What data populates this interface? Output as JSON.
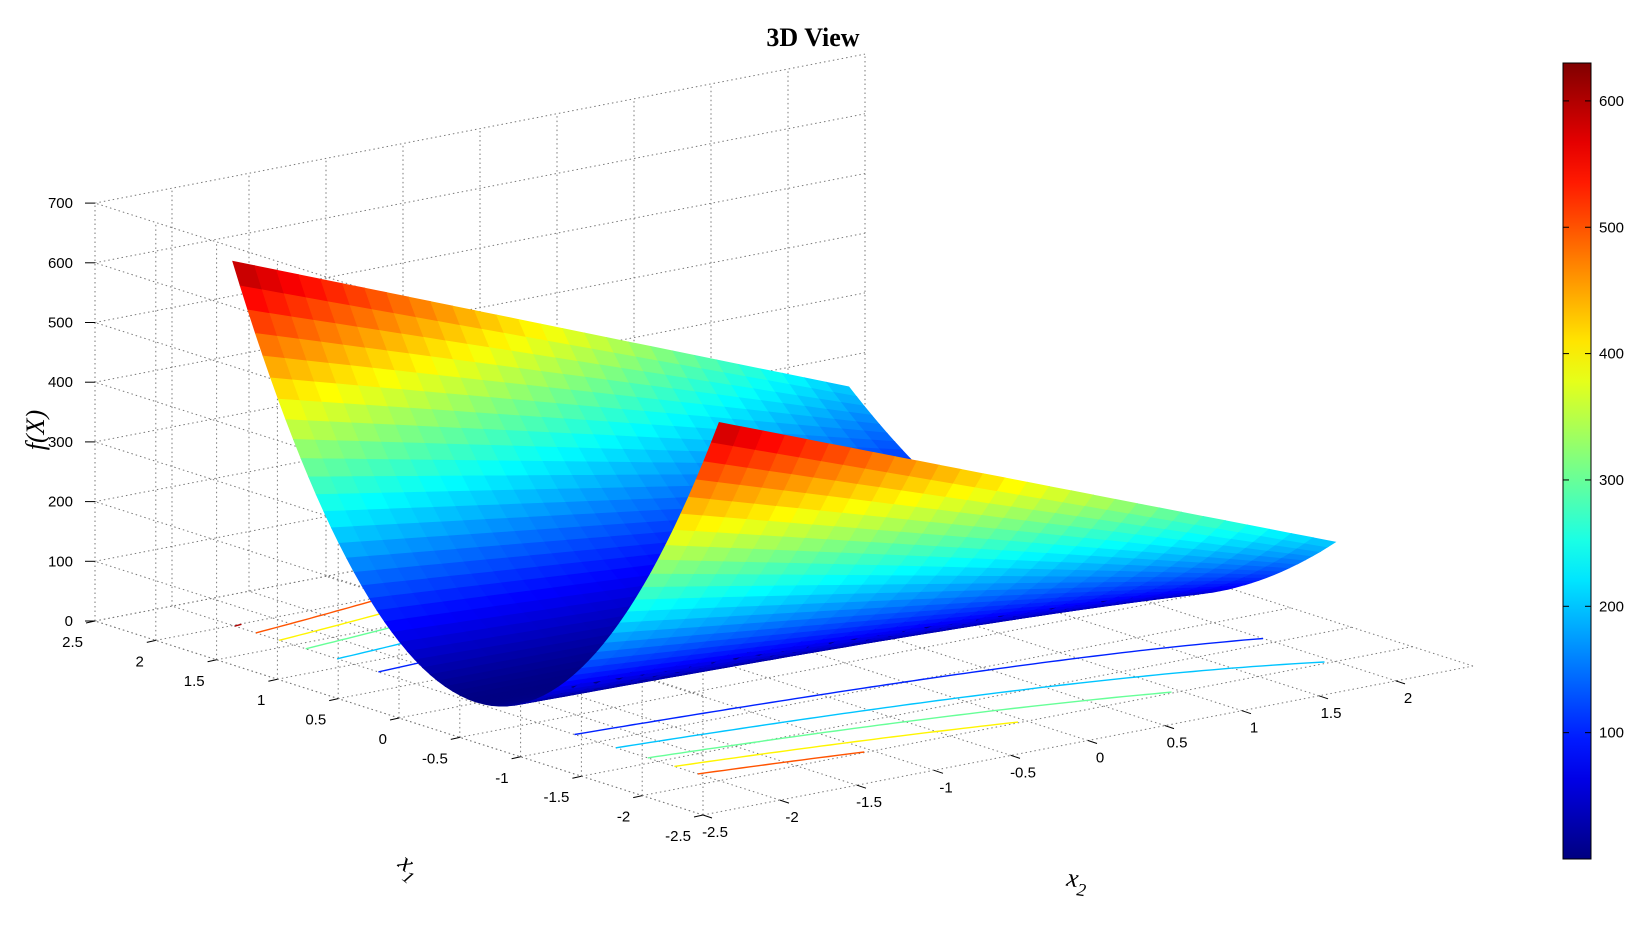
{
  "chart_data": {
    "type": "surface",
    "title": "3D View",
    "xlabel": "x",
    "xlabel_sub": "1",
    "ylabel": "x",
    "ylabel_sub": "2",
    "zlabel": "f(X)",
    "x1_ticks": [
      "-2.5",
      "-2",
      "-1.5",
      "-1",
      "-0.5",
      "0",
      "0.5",
      "1",
      "1.5",
      "2",
      "2.5"
    ],
    "x2_ticks": [
      "-2.5",
      "-2",
      "-1.5",
      "-1",
      "-0.5",
      "0",
      "0.5",
      "1",
      "1.5",
      "2"
    ],
    "z_ticks": [
      "0",
      "100",
      "200",
      "300",
      "400",
      "500",
      "600",
      "700"
    ],
    "xlim": [
      -2.5,
      2.5
    ],
    "ylim": [
      -2.5,
      2.5
    ],
    "zlim": [
      0,
      700
    ],
    "grid": true,
    "colormap": "jet",
    "colorbar": {
      "placement": "right",
      "range": [
        0,
        630
      ],
      "tick_labels": [
        "100",
        "200",
        "300",
        "400",
        "500",
        "600"
      ]
    },
    "surface": {
      "x1_range": [
        -2,
        2
      ],
      "x2_range": [
        -2,
        2
      ],
      "value_range": [
        0,
        630
      ],
      "corner_values": [
        {
          "x1": 2,
          "x2": -2,
          "value": 610
        },
        {
          "x1": -2,
          "x2": -2,
          "value": 600
        },
        {
          "x1": 2,
          "x2": 2,
          "value": 200
        },
        {
          "x1": -2,
          "x2": 2,
          "value": 200
        }
      ],
      "valley_x1": 0
    },
    "contour_levels": [
      100,
      200,
      300,
      400,
      500,
      600
    ]
  }
}
